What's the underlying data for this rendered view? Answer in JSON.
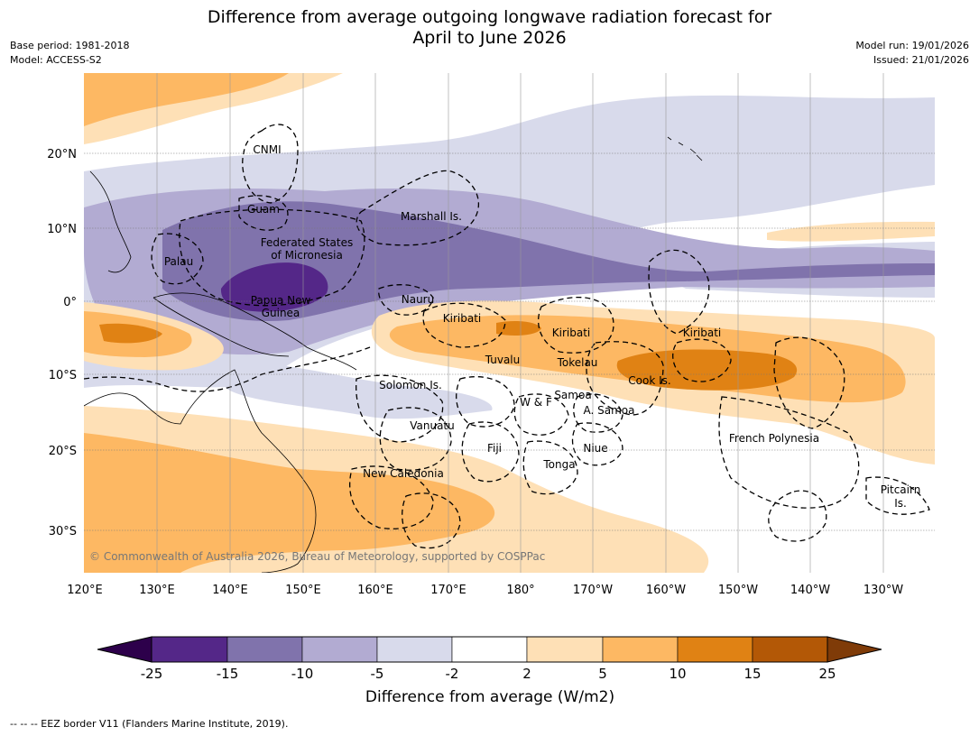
{
  "title": {
    "line1": "Difference from average outgoing longwave radiation forecast for",
    "line2": "April to June 2026"
  },
  "meta_left": {
    "base_period": "Base period: 1981-2018",
    "model": "Model: ACCESS-S2"
  },
  "meta_right": {
    "model_run": "Model run: 19/01/2026",
    "issued": "Issued: 21/01/2026"
  },
  "copyright": "© Commonwealth of Australia 2026, Bureau of Meteorology, supported by COSPPac",
  "axes": {
    "lon_labels": [
      "120°E",
      "130°E",
      "140°E",
      "150°E",
      "160°E",
      "170°E",
      "180°",
      "170°W",
      "160°W",
      "150°W",
      "140°W",
      "130°W"
    ],
    "lat_labels": [
      "20°N",
      "10°N",
      "0°",
      "10°S",
      "20°S",
      "30°S"
    ]
  },
  "regions": [
    "CNMI",
    "Guam",
    "Marshall Is.",
    "Federated States",
    "of Micronesia",
    "Palau",
    "Papua New",
    "Guinea",
    "Nauru",
    "Kiribati",
    "Kiribati",
    "Kiribati",
    "Tuvalu",
    "Tokelau",
    "Cook Is.",
    "Solomon Is.",
    "Samoa",
    "W & F",
    "A. Samoa",
    "Vanuatu",
    "Fiji",
    "Niue",
    "Tonga",
    "French Polynesia",
    "New Caledonia",
    "Pitcairn",
    "Is."
  ],
  "colorbar": {
    "ticks": [
      "-25",
      "-15",
      "-10",
      "-5",
      "-2",
      "2",
      "5",
      "10",
      "15",
      "25"
    ],
    "title": "Difference from average (W/m2)",
    "colors": [
      "#2d004b",
      "#542788",
      "#8073ac",
      "#b2abd2",
      "#d8daeb",
      "#ffffff",
      "#fee0b6",
      "#fdb863",
      "#e08214",
      "#b35806",
      "#7f3b08"
    ]
  },
  "footer": "--  --  -- EEZ border V11 (Flanders Marine Institute, 2019)."
}
